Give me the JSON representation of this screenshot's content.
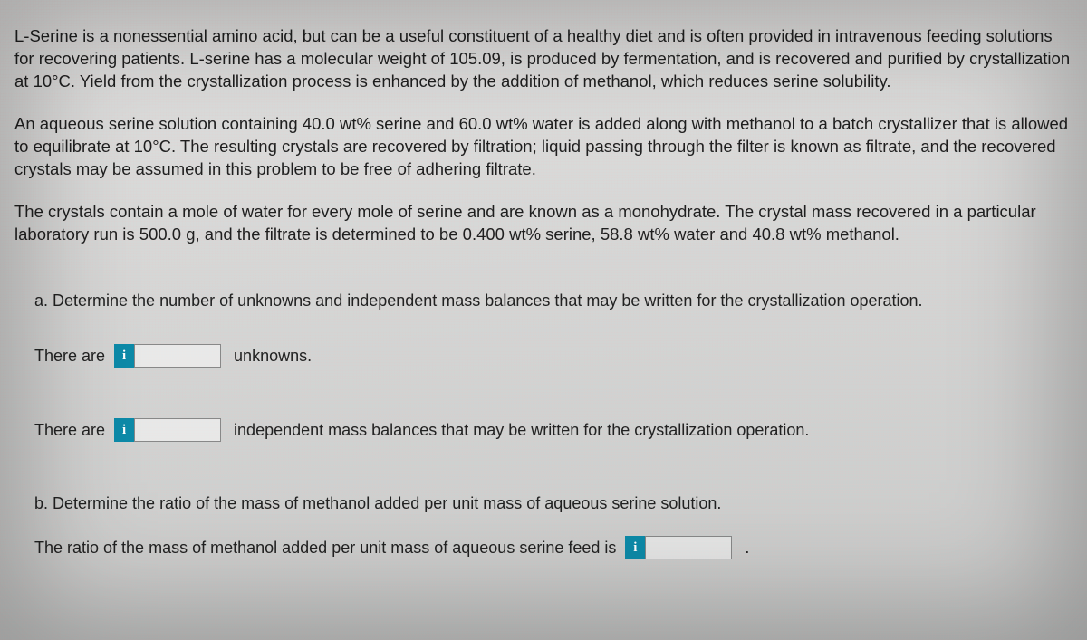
{
  "paragraphs": {
    "p1": "L-Serine is a nonessential amino acid, but can be a useful constituent of a healthy diet and is often provided in intravenous feeding solutions for recovering patients. L-serine has a molecular weight of 105.09, is produced by fermentation, and is recovered and purified by crystallization at 10°C. Yield from the crystallization process is enhanced by the addition of methanol, which reduces serine solubility.",
    "p2": "An aqueous serine solution containing 40.0 wt% serine and 60.0 wt% water is added along with methanol to a batch crystallizer that is allowed to equilibrate at 10°C. The resulting crystals are recovered by filtration; liquid passing through the filter is known as filtrate, and the recovered crystals may be assumed in this problem to be free of adhering filtrate.",
    "p3": "The crystals contain a mole of water for every mole of serine and are known as a monohydrate. The crystal mass recovered in a particular laboratory run is 500.0 g, and the filtrate is determined to be 0.400 wt% serine, 58.8 wt% water and 40.8 wt% methanol."
  },
  "partA": {
    "prompt": "a. Determine the number of unknowns and independent mass balances that may be written for the crystallization operation.",
    "row1": {
      "left": "There are",
      "info": "i",
      "value": "",
      "right": "unknowns."
    },
    "row2": {
      "left": "There are",
      "info": "i",
      "value": "",
      "right": "independent mass balances that may be written for the crystallization operation."
    }
  },
  "partB": {
    "prompt": "b. Determine the ratio of the mass of methanol added per unit mass of aqueous serine solution.",
    "row": {
      "left": "The ratio of the mass of methanol added per unit mass of aqueous serine feed is",
      "info": "i",
      "value": "",
      "right": "."
    }
  },
  "colors": {
    "info_bg": "#0d8aa8",
    "text": "#1f1f1f"
  }
}
